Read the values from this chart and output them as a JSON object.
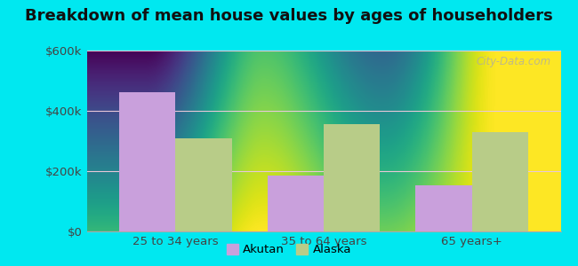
{
  "title": "Breakdown of mean house values by ages of householders",
  "categories": [
    "25 to 34 years",
    "35 to 64 years",
    "65 years+"
  ],
  "akutan_values": [
    462000,
    185000,
    152000
  ],
  "alaska_values": [
    310000,
    355000,
    330000
  ],
  "akutan_color": "#c9a0dc",
  "alaska_color": "#b8cc88",
  "ylim": [
    0,
    600000
  ],
  "yticks": [
    0,
    200000,
    400000,
    600000
  ],
  "ytick_labels": [
    "$0",
    "$200k",
    "$400k",
    "$600k"
  ],
  "outer_background": "#00e8f0",
  "bar_width": 0.38,
  "legend_labels": [
    "Akutan",
    "Alaska"
  ],
  "title_fontsize": 13,
  "axis_fontsize": 9.5,
  "watermark": "City-Data.com"
}
